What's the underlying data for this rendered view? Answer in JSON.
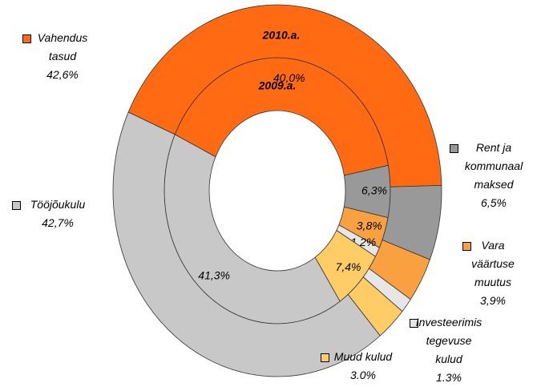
{
  "chart_data": {
    "type": "donut",
    "categories": [
      "Vahendus tasud",
      "Rent ja kommunaal maksed",
      "Vara väärtuse muutus",
      "Investeerimis tegevuse kulud",
      "Muud kulud",
      "Tööjõukulu"
    ],
    "colors": [
      "#ff6a13",
      "#999999",
      "#f9a040",
      "#e6e6e6",
      "#ffcc66",
      "#c8c8c8"
    ],
    "series": [
      {
        "name": "2009.a.",
        "values": [
          40.0,
          6.3,
          3.8,
          1.2,
          7.4,
          41.3
        ],
        "value_labels": [
          "40,0%",
          "6,3%",
          "3,8%",
          "1,2%",
          "7,4%",
          "41,3%"
        ]
      },
      {
        "name": "2010.a.",
        "values": [
          42.6,
          6.5,
          3.9,
          1.3,
          3.0,
          42.7
        ],
        "value_labels": [
          "42,6%",
          "6,5%",
          "3,9%",
          "1.3%",
          "3.0%",
          "42,7%"
        ]
      }
    ]
  }
}
